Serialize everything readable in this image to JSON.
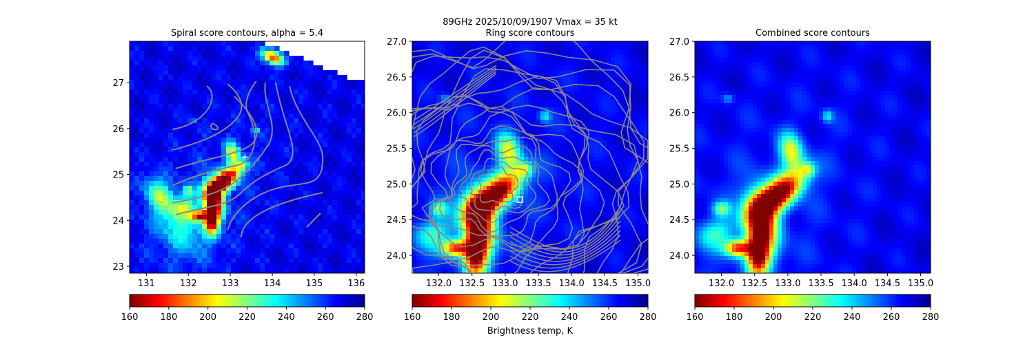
{
  "figure": {
    "suptitle_line1": "89GHz  2025/10/09/1907    Vmax = 35 kt",
    "colorbar_label": "Brightness temp, K"
  },
  "colormap": {
    "name": "jet_r",
    "min": 160,
    "max": 280,
    "ticks": [
      "160",
      "180",
      "200",
      "220",
      "240",
      "260",
      "280"
    ],
    "stops": [
      "#800000",
      "#ff0000",
      "#ff8000",
      "#ffff00",
      "#80ff80",
      "#00ffff",
      "#0080ff",
      "#0000ff",
      "#00008f"
    ]
  },
  "chart_data": [
    {
      "type": "heatmap",
      "title": "Spiral score contours, alpha =  5.4",
      "xlim": [
        130.6,
        136.2
      ],
      "ylim": [
        22.85,
        27.9
      ],
      "xticks": [
        "131",
        "132",
        "133",
        "134",
        "135",
        "136"
      ],
      "yticks": [
        "23",
        "24",
        "25",
        "26",
        "27"
      ],
      "marker": {
        "type": "plus",
        "x": 133.35,
        "y": 25.38
      },
      "band": {
        "note_color": "#ff0000"
      }
    },
    {
      "type": "heatmap",
      "title": "Ring score contours",
      "xlim": [
        131.6,
        135.15
      ],
      "ylim": [
        23.75,
        27.0
      ],
      "xticks": [
        "132.0",
        "132.5",
        "133.0",
        "133.5",
        "134.0",
        "134.5",
        "135.0"
      ],
      "yticks": [
        "24.0",
        "24.5",
        "25.0",
        "25.5",
        "26.0",
        "26.5",
        "27.0"
      ],
      "marker": {
        "type": "square",
        "x": 133.22,
        "y": 24.78
      }
    },
    {
      "type": "heatmap",
      "title": "Combined score contours",
      "xlim": [
        131.6,
        135.15
      ],
      "ylim": [
        23.75,
        27.0
      ],
      "xticks": [
        "132.0",
        "132.5",
        "133.0",
        "133.5",
        "134.0",
        "134.5",
        "135.0"
      ],
      "yticks": [
        "24.0",
        "24.5",
        "25.0",
        "25.5",
        "26.0",
        "26.5",
        "27.0"
      ]
    }
  ],
  "colors": {
    "contour": "#888888",
    "background_field": "#1030ff"
  }
}
